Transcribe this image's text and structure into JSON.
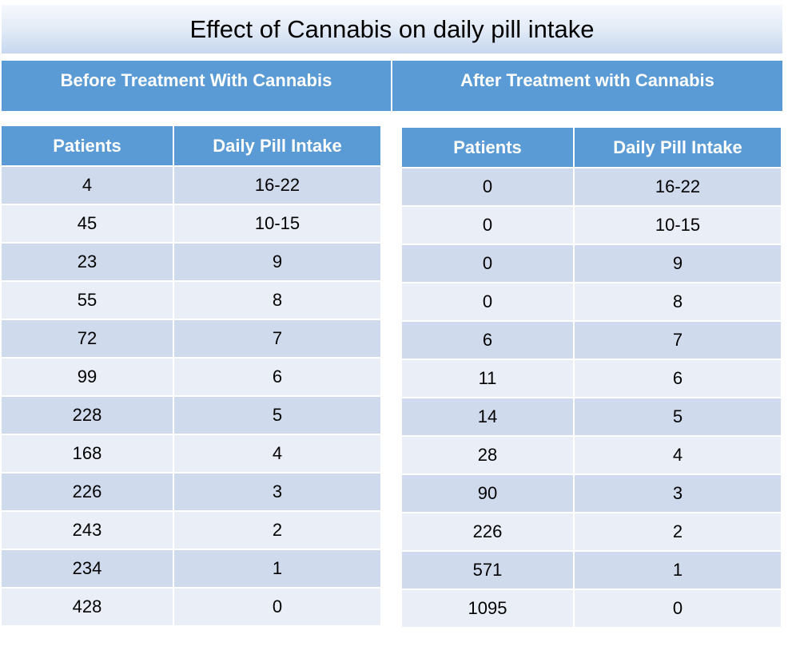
{
  "title": "Effect of Cannabis on daily pill intake",
  "before": {
    "header": "Before Treatment With Cannabis",
    "col_patients": "Patients",
    "col_intake": "Daily Pill Intake"
  },
  "after": {
    "header": "After Treatment with Cannabis",
    "col_patients": "Patients",
    "col_intake": "Daily Pill Intake"
  },
  "chart_data": {
    "type": "table",
    "title": "Effect of Cannabis on daily pill intake",
    "tables": [
      {
        "name": "Before Treatment With Cannabis",
        "columns": [
          "Patients",
          "Daily Pill Intake"
        ],
        "rows": [
          [
            "4",
            "16-22"
          ],
          [
            "45",
            "10-15"
          ],
          [
            "23",
            "9"
          ],
          [
            "55",
            "8"
          ],
          [
            "72",
            "7"
          ],
          [
            "99",
            "6"
          ],
          [
            "228",
            "5"
          ],
          [
            "168",
            "4"
          ],
          [
            "226",
            "3"
          ],
          [
            "243",
            "2"
          ],
          [
            "234",
            "1"
          ],
          [
            "428",
            "0"
          ]
        ]
      },
      {
        "name": "After Treatment with Cannabis",
        "columns": [
          "Patients",
          "Daily Pill Intake"
        ],
        "rows": [
          [
            "0",
            "16-22"
          ],
          [
            "0",
            "10-15"
          ],
          [
            "0",
            "9"
          ],
          [
            "0",
            "8"
          ],
          [
            "6",
            "7"
          ],
          [
            "11",
            "6"
          ],
          [
            "14",
            "5"
          ],
          [
            "28",
            "4"
          ],
          [
            "90",
            "3"
          ],
          [
            "226",
            "2"
          ],
          [
            "571",
            "1"
          ],
          [
            "1095",
            "0"
          ]
        ]
      }
    ]
  },
  "colors": {
    "header_blue": "#5b9bd5",
    "row_dark": "#cfdaec",
    "row_light": "#e9eef7"
  }
}
